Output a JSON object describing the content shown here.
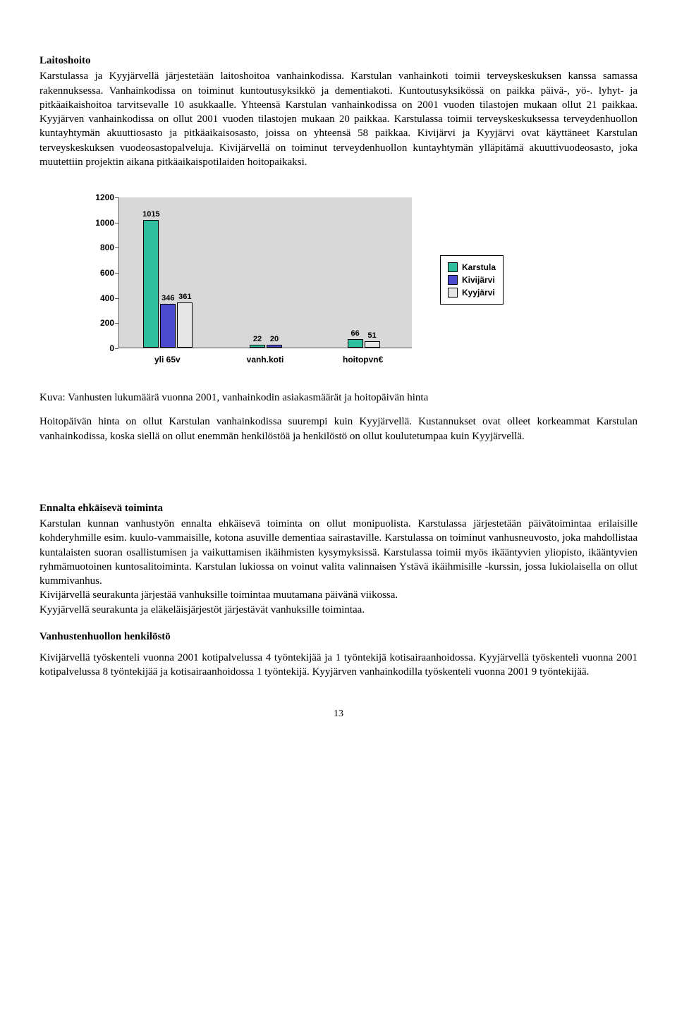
{
  "section1": {
    "heading": "Laitoshoito",
    "para": "Karstulassa ja Kyyjärvellä järjestetään laitoshoitoa vanhainkodissa. Karstulan vanhainkoti toimii terveyskeskuksen kanssa samassa rakennuksessa. Vanhainkodissa on toiminut kuntoutusyksikkö ja dementiakoti. Kuntoutusyksikössä on paikka päivä-, yö-. lyhyt- ja pitkäaikaishoitoa tarvitsevalle 10 asukkaalle. Yhteensä Karstulan vanhainkodissa on 2001 vuoden tilastojen mukaan ollut 21 paikkaa. Kyyjärven vanhainkodissa on ollut 2001 vuoden tilastojen mukaan 20 paikkaa. Karstulassa toimii terveyskeskuksessa terveydenhuollon kuntayhtymän akuuttiosasto ja pitkäaikaisosasto, joissa on yhteensä 58 paikkaa. Kivijärvi ja Kyyjärvi ovat käyttäneet Karstulan terveyskeskuksen vuodeosastopalveluja. Kivijärvellä on toiminut terveydenhuollon kuntayhtymän ylläpitämä akuuttivuodeosasto, joka muutettiin projektin aikana pitkäaikaispotilaiden hoitopaikaksi."
  },
  "chart": {
    "type": "bar",
    "ylim": [
      0,
      1200
    ],
    "ytick_step": 200,
    "yticks": [
      "0",
      "200",
      "400",
      "600",
      "800",
      "1000",
      "1200"
    ],
    "plot_background": "#d8d8d8",
    "categories": [
      "yli 65v",
      "vanh.koti",
      "hoitopvn€"
    ],
    "series": [
      {
        "name": "Karstula",
        "color": "#2fbf9f",
        "values": [
          1015,
          22,
          66
        ]
      },
      {
        "name": "Kivijärvi",
        "color": "#4a4acf",
        "values": [
          346,
          20,
          null
        ]
      },
      {
        "name": "Kyyjärvi",
        "color": "#e6e6e6",
        "values": [
          361,
          null,
          51
        ]
      }
    ],
    "legend_labels": [
      "Karstula",
      "Kivijärvi",
      "Kyyjärvi"
    ]
  },
  "caption": "Kuva: Vanhusten lukumäärä vuonna 2001, vanhainkodin asiakasmäärät ja hoitopäivän hinta",
  "para2": "Hoitopäivän hinta on ollut Karstulan vanhainkodissa suurempi kuin Kyyjärvellä. Kustannukset ovat olleet korkeammat Karstulan vanhainkodissa, koska siellä on ollut enemmän henkilöstöä ja henkilöstö on ollut koulutetumpaa kuin Kyyjärvellä.",
  "section2": {
    "heading": "Ennalta ehkäisevä toiminta",
    "para1": "Karstulan kunnan vanhustyön ennalta ehkäisevä toiminta on ollut monipuolista. Karstulassa järjestetään päivätoimintaa erilaisille kohderyhmille esim. kuulo-vammaisille, kotona asuville dementiaa sairastaville. Karstulassa on toiminut vanhusneuvosto, joka mahdollistaa kuntalaisten suoran osallistumisen ja vaikuttamisen ikäihmisten kysymyksissä. Karstulassa toimii myös ikääntyvien yliopisto, ikääntyvien ryhmämuotoinen kuntosalitoiminta. Karstulan lukiossa on voinut valita valinnaisen Ystävä ikäihmisille -kurssin, jossa lukiolaisella on ollut kummivanhus.",
    "line2": "Kivijärvellä seurakunta järjestää vanhuksille toimintaa muutamana päivänä viikossa.",
    "line3": "Kyyjärvellä seurakunta ja eläkeläisjärjestöt järjestävät vanhuksille toimintaa."
  },
  "section3": {
    "heading": "Vanhustenhuollon henkilöstö",
    "para": "Kivijärvellä työskenteli vuonna 2001 kotipalvelussa 4 työntekijää ja 1 työntekijä kotisairaanhoidossa. Kyyjärvellä työskenteli vuonna 2001 kotipalvelussa 8 työntekijää ja kotisairaanhoidossa 1 työntekijä. Kyyjärven vanhainkodilla työskenteli vuonna 2001 9 työntekijää."
  },
  "page_number": "13"
}
